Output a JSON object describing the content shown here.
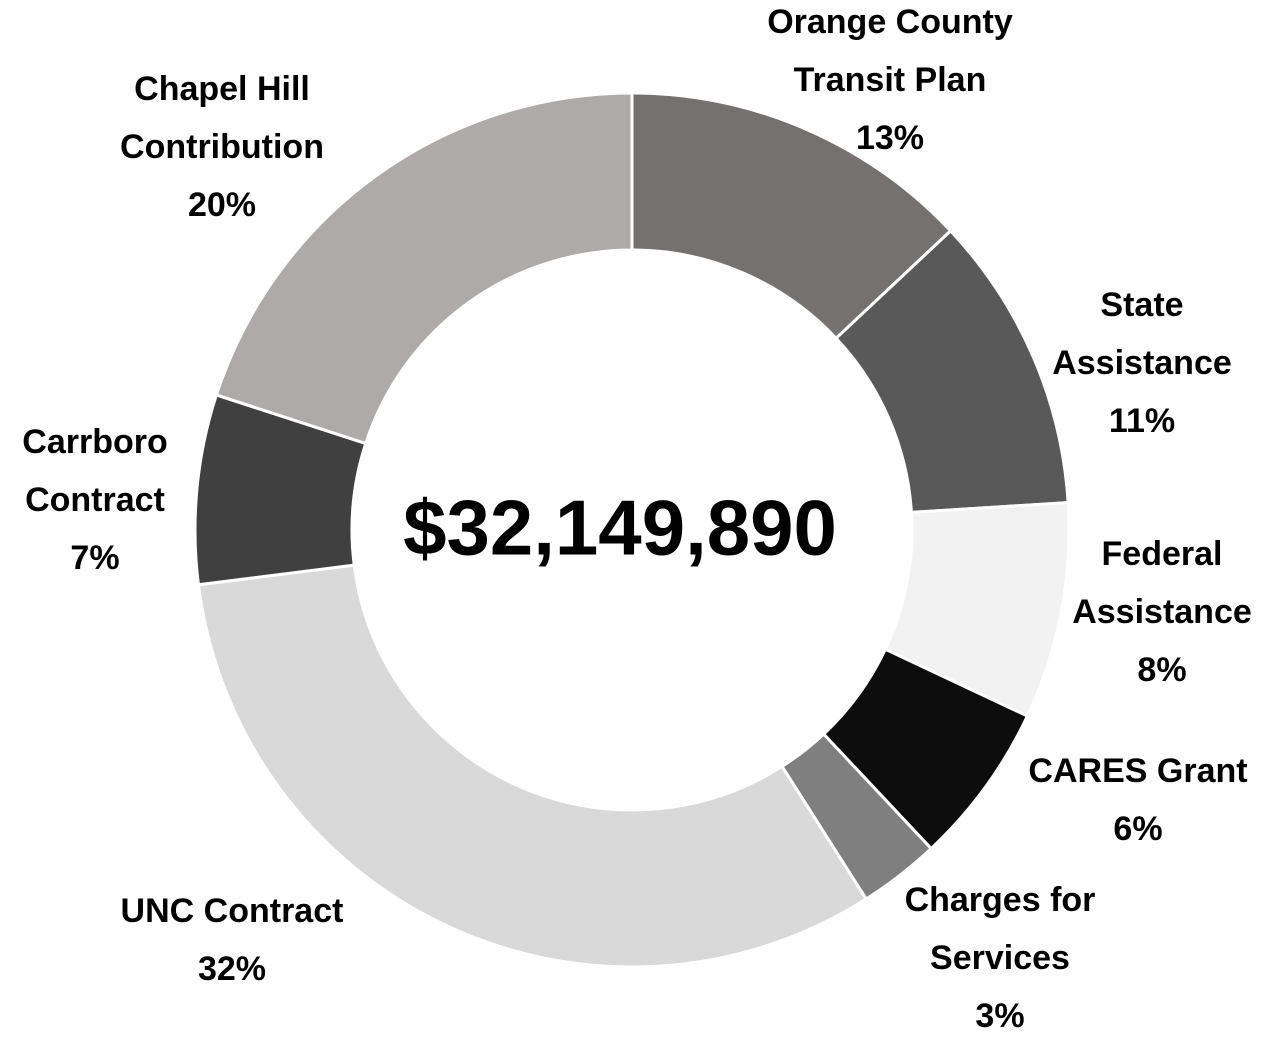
{
  "chart_data": {
    "type": "donut",
    "center_label": "$32,149,890",
    "categories": [
      "Orange County Transit Plan",
      "State Assistance",
      "Federal Assistance",
      "CARES Grant",
      "Charges for Services",
      "UNC Contract",
      "Carrboro Contract",
      "Chapel Hill Contribution"
    ],
    "values": [
      13,
      11,
      8,
      6,
      3,
      32,
      7,
      20
    ],
    "value_labels": [
      "13%",
      "11%",
      "8%",
      "6%",
      "3%",
      "32%",
      "7%",
      "20%"
    ],
    "colors": [
      "#767171",
      "#595959",
      "#f2f2f2",
      "#0d0d0d",
      "#7f7f7f",
      "#d9d9d9",
      "#404040",
      "#aeaaaa"
    ]
  }
}
